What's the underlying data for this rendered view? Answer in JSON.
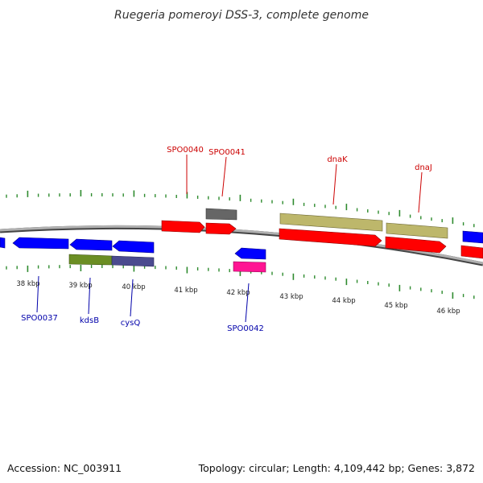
{
  "title": "Ruegeria pomeroyi DSS-3, complete genome",
  "footer": {
    "accession": "Accession: NC_003911",
    "summary": "Topology: circular; Length: 4,109,442 bp; Genes: 3,872"
  },
  "colors": {
    "backbone": "#8c8c8c",
    "tick": "#2e8b2e",
    "label_forward": "#cc0000",
    "label_reverse": "#0000aa",
    "label_line_forward": "#cc0000",
    "label_line_reverse": "#0000aa"
  },
  "scale_labels": [
    "38 kbp",
    "39 kbp",
    "40 kbp",
    "41 kbp",
    "42 kbp",
    "43 kbp",
    "44 kbp",
    "45 kbp",
    "46 kbp"
  ],
  "genes": [
    {
      "id": "g-reverse-edge",
      "label": "",
      "color": "#0000ff",
      "strand": "reverse"
    },
    {
      "id": "g-spo0037",
      "label": "SPO0037",
      "color": "#0000ff",
      "strand": "reverse"
    },
    {
      "id": "g-kdsb",
      "label": "kdsB",
      "color": "#0000ff",
      "strand": "reverse"
    },
    {
      "id": "g-cysq",
      "label": "cysQ",
      "color": "#0000ff",
      "strand": "reverse"
    },
    {
      "id": "g-kdsb-cog",
      "label": "",
      "color": "#6b8e23",
      "strand": "reverse"
    },
    {
      "id": "g-cysq-cog",
      "label": "",
      "color": "#4b4b8f",
      "strand": "reverse"
    },
    {
      "id": "g-spo0040",
      "label": "SPO0040",
      "color": "#ff0000",
      "strand": "forward"
    },
    {
      "id": "g-spo0041",
      "label": "SPO0041",
      "color": "#ff0000",
      "strand": "forward"
    },
    {
      "id": "g-spo0041-cog",
      "label": "",
      "color": "#666666",
      "strand": "forward"
    },
    {
      "id": "g-spo0042",
      "label": "SPO0042",
      "color": "#0000ff",
      "strand": "reverse"
    },
    {
      "id": "g-spo0042-cog",
      "label": "",
      "color": "#ff1493",
      "strand": "reverse"
    },
    {
      "id": "g-dnak",
      "label": "dnaK",
      "color": "#ff0000",
      "strand": "forward"
    },
    {
      "id": "g-dnak-cog",
      "label": "",
      "color": "#bdb76b",
      "strand": "forward"
    },
    {
      "id": "g-dnaj",
      "label": "dnaJ",
      "color": "#ff0000",
      "strand": "forward"
    },
    {
      "id": "g-dnaj-cog",
      "label": "",
      "color": "#bdb76b",
      "strand": "forward"
    },
    {
      "id": "g-forward-edge",
      "label": "",
      "color": "#ff0000",
      "strand": "forward"
    },
    {
      "id": "g-reverse-edge-right",
      "label": "",
      "color": "#0000ff",
      "strand": "reverse"
    }
  ]
}
